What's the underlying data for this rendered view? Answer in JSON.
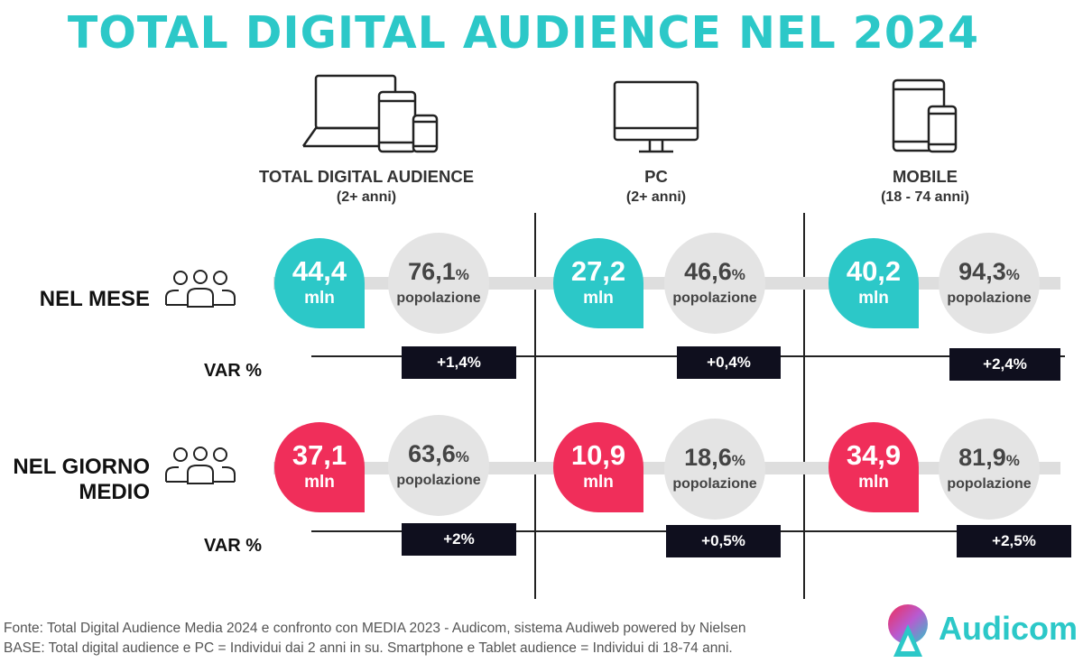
{
  "title": "TOTAL DIGITAL AUDIENCE NEL 2024",
  "columns": [
    {
      "name": "TOTAL DIGITAL AUDIENCE",
      "sub": "(2+ anni)",
      "icon": "multi-device-icon"
    },
    {
      "name": "PC",
      "sub": "(2+ anni)",
      "icon": "desktop-monitor-icon"
    },
    {
      "name": "MOBILE",
      "sub": "(18 - 74 anni)",
      "icon": "mobile-devices-icon"
    }
  ],
  "rows": {
    "month": {
      "label": "NEL MESE",
      "cells": [
        {
          "value": "44,4",
          "unit": "mln",
          "pct": "76,1",
          "pct_sign": "%",
          "pct_label": "popolazione",
          "var": "+1,4%"
        },
        {
          "value": "27,2",
          "unit": "mln",
          "pct": "46,6",
          "pct_sign": "%",
          "pct_label": "popolazione",
          "var": "+0,4%"
        },
        {
          "value": "40,2",
          "unit": "mln",
          "pct": "94,3",
          "pct_sign": "%",
          "pct_label": "popolazione",
          "var": "+2,4%"
        }
      ]
    },
    "day": {
      "label_line1": "NEL GIORNO",
      "label_line2": "MEDIO",
      "cells": [
        {
          "value": "37,1",
          "unit": "mln",
          "pct": "63,6",
          "pct_sign": "%",
          "pct_label": "popolazione",
          "var": "+2%"
        },
        {
          "value": "10,9",
          "unit": "mln",
          "pct": "18,6",
          "pct_sign": "%",
          "pct_label": "popolazione",
          "var": "+0,5%"
        },
        {
          "value": "34,9",
          "unit": "mln",
          "pct": "81,9",
          "pct_sign": "%",
          "pct_label": "popolazione",
          "var": "+2,5%"
        }
      ]
    }
  },
  "var_label": "VAR %",
  "footer": {
    "line1": "Fonte: Total Digital Audience Media 2024 e confronto con MEDIA 2023 - Audicom, sistema Audiweb powered by Nielsen",
    "line2": "BASE: Total digital audience e PC = Individui dai 2 anni in su. Smartphone e Tablet audience = Individui di 18-74 anni."
  },
  "logo": {
    "text": "Audicom"
  },
  "colors": {
    "accent": "#2cc8c8",
    "teal": "#2cc8c8",
    "red": "#f02e5a",
    "dark": "#0f0f1e",
    "grey": "#e4e4e4"
  }
}
